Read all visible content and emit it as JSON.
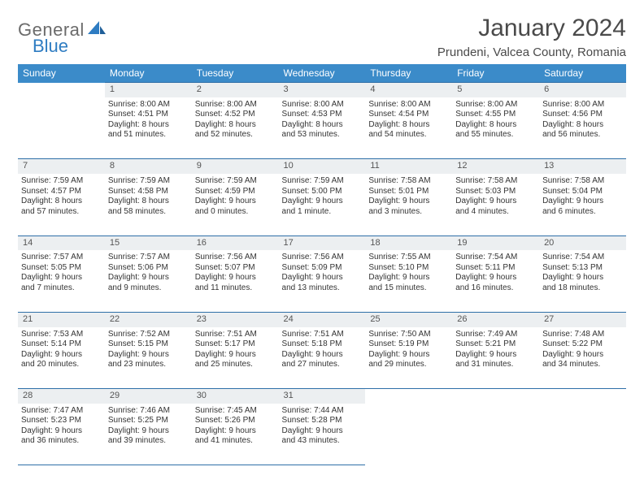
{
  "logo": {
    "word1": "General",
    "word2": "Blue"
  },
  "title": "January 2024",
  "location": "Prundeni, Valcea County, Romania",
  "header_bg": "#3b8bc9",
  "shade_bg": "#eceff1",
  "rule_color": "#2e6fa8",
  "day_headers": [
    "Sunday",
    "Monday",
    "Tuesday",
    "Wednesday",
    "Thursday",
    "Friday",
    "Saturday"
  ],
  "weeks": [
    [
      null,
      {
        "n": "1",
        "sr": "8:00 AM",
        "ss": "4:51 PM",
        "d1": "8 hours",
        "d2": "and 51 minutes."
      },
      {
        "n": "2",
        "sr": "8:00 AM",
        "ss": "4:52 PM",
        "d1": "8 hours",
        "d2": "and 52 minutes."
      },
      {
        "n": "3",
        "sr": "8:00 AM",
        "ss": "4:53 PM",
        "d1": "8 hours",
        "d2": "and 53 minutes."
      },
      {
        "n": "4",
        "sr": "8:00 AM",
        "ss": "4:54 PM",
        "d1": "8 hours",
        "d2": "and 54 minutes."
      },
      {
        "n": "5",
        "sr": "8:00 AM",
        "ss": "4:55 PM",
        "d1": "8 hours",
        "d2": "and 55 minutes."
      },
      {
        "n": "6",
        "sr": "8:00 AM",
        "ss": "4:56 PM",
        "d1": "8 hours",
        "d2": "and 56 minutes."
      }
    ],
    [
      {
        "n": "7",
        "sr": "7:59 AM",
        "ss": "4:57 PM",
        "d1": "8 hours",
        "d2": "and 57 minutes."
      },
      {
        "n": "8",
        "sr": "7:59 AM",
        "ss": "4:58 PM",
        "d1": "8 hours",
        "d2": "and 58 minutes."
      },
      {
        "n": "9",
        "sr": "7:59 AM",
        "ss": "4:59 PM",
        "d1": "9 hours",
        "d2": "and 0 minutes."
      },
      {
        "n": "10",
        "sr": "7:59 AM",
        "ss": "5:00 PM",
        "d1": "9 hours",
        "d2": "and 1 minute."
      },
      {
        "n": "11",
        "sr": "7:58 AM",
        "ss": "5:01 PM",
        "d1": "9 hours",
        "d2": "and 3 minutes."
      },
      {
        "n": "12",
        "sr": "7:58 AM",
        "ss": "5:03 PM",
        "d1": "9 hours",
        "d2": "and 4 minutes."
      },
      {
        "n": "13",
        "sr": "7:58 AM",
        "ss": "5:04 PM",
        "d1": "9 hours",
        "d2": "and 6 minutes."
      }
    ],
    [
      {
        "n": "14",
        "sr": "7:57 AM",
        "ss": "5:05 PM",
        "d1": "9 hours",
        "d2": "and 7 minutes."
      },
      {
        "n": "15",
        "sr": "7:57 AM",
        "ss": "5:06 PM",
        "d1": "9 hours",
        "d2": "and 9 minutes."
      },
      {
        "n": "16",
        "sr": "7:56 AM",
        "ss": "5:07 PM",
        "d1": "9 hours",
        "d2": "and 11 minutes."
      },
      {
        "n": "17",
        "sr": "7:56 AM",
        "ss": "5:09 PM",
        "d1": "9 hours",
        "d2": "and 13 minutes."
      },
      {
        "n": "18",
        "sr": "7:55 AM",
        "ss": "5:10 PM",
        "d1": "9 hours",
        "d2": "and 15 minutes."
      },
      {
        "n": "19",
        "sr": "7:54 AM",
        "ss": "5:11 PM",
        "d1": "9 hours",
        "d2": "and 16 minutes."
      },
      {
        "n": "20",
        "sr": "7:54 AM",
        "ss": "5:13 PM",
        "d1": "9 hours",
        "d2": "and 18 minutes."
      }
    ],
    [
      {
        "n": "21",
        "sr": "7:53 AM",
        "ss": "5:14 PM",
        "d1": "9 hours",
        "d2": "and 20 minutes."
      },
      {
        "n": "22",
        "sr": "7:52 AM",
        "ss": "5:15 PM",
        "d1": "9 hours",
        "d2": "and 23 minutes."
      },
      {
        "n": "23",
        "sr": "7:51 AM",
        "ss": "5:17 PM",
        "d1": "9 hours",
        "d2": "and 25 minutes."
      },
      {
        "n": "24",
        "sr": "7:51 AM",
        "ss": "5:18 PM",
        "d1": "9 hours",
        "d2": "and 27 minutes."
      },
      {
        "n": "25",
        "sr": "7:50 AM",
        "ss": "5:19 PM",
        "d1": "9 hours",
        "d2": "and 29 minutes."
      },
      {
        "n": "26",
        "sr": "7:49 AM",
        "ss": "5:21 PM",
        "d1": "9 hours",
        "d2": "and 31 minutes."
      },
      {
        "n": "27",
        "sr": "7:48 AM",
        "ss": "5:22 PM",
        "d1": "9 hours",
        "d2": "and 34 minutes."
      }
    ],
    [
      {
        "n": "28",
        "sr": "7:47 AM",
        "ss": "5:23 PM",
        "d1": "9 hours",
        "d2": "and 36 minutes."
      },
      {
        "n": "29",
        "sr": "7:46 AM",
        "ss": "5:25 PM",
        "d1": "9 hours",
        "d2": "and 39 minutes."
      },
      {
        "n": "30",
        "sr": "7:45 AM",
        "ss": "5:26 PM",
        "d1": "9 hours",
        "d2": "and 41 minutes."
      },
      {
        "n": "31",
        "sr": "7:44 AM",
        "ss": "5:28 PM",
        "d1": "9 hours",
        "d2": "and 43 minutes."
      },
      null,
      null,
      null
    ]
  ],
  "labels": {
    "sunrise": "Sunrise:",
    "sunset": "Sunset:",
    "daylight": "Daylight:"
  }
}
